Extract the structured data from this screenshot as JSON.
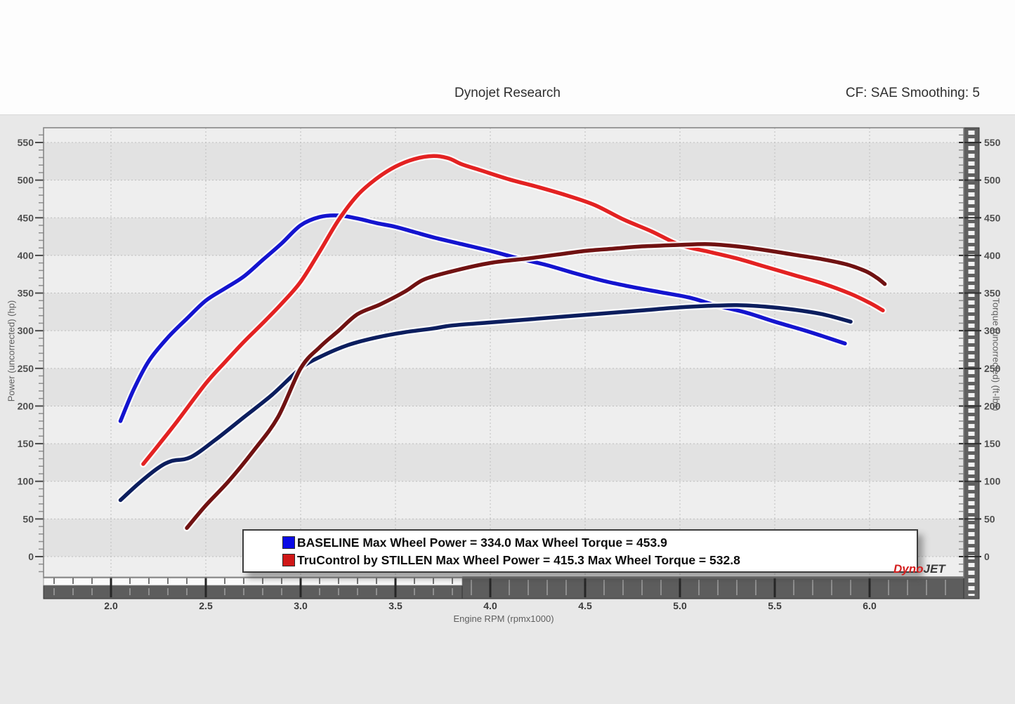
{
  "header": {
    "title": "Dynojet Research",
    "correction_info": "CF: SAE Smoothing: 5"
  },
  "legend": [
    {
      "swatch_color": "#0a0ae6",
      "label": "BASELINE Max Wheel Power = 334.0 Max Wheel Torque = 453.9"
    },
    {
      "swatch_color": "#cf1717",
      "label": "TruControl by STILLEN Max Wheel Power = 415.3 Max Wheel Torque = 532.8"
    }
  ],
  "logo": {
    "part1": "Dyno",
    "part2": "JET"
  },
  "chart_data": {
    "type": "line",
    "title": "Dynojet Research",
    "xlabel": "Engine RPM (rpmx1000)",
    "ylabel_left": "Power (uncorrected) (hp)",
    "ylabel_right": "Torque (uncorrected) (ft-lbs)",
    "xlim": [
      1.645,
      6.495
    ],
    "ylim": [
      -28,
      570
    ],
    "x_ticks": [
      2.0,
      2.5,
      3.0,
      3.5,
      4.0,
      4.5,
      5.0,
      5.5,
      6.0
    ],
    "y_ticks": [
      0,
      50,
      100,
      150,
      200,
      250,
      300,
      350,
      400,
      450,
      500,
      550
    ],
    "grid": "dotted",
    "legend_position": "bottom",
    "series": [
      {
        "name": "BASELINE Wheel Torque",
        "max_value": 453.9,
        "color": "#1414cf",
        "points": [
          [
            2.05,
            180
          ],
          [
            2.12,
            222
          ],
          [
            2.2,
            260
          ],
          [
            2.3,
            291
          ],
          [
            2.4,
            316
          ],
          [
            2.5,
            340
          ],
          [
            2.6,
            356
          ],
          [
            2.7,
            372
          ],
          [
            2.8,
            394
          ],
          [
            2.9,
            416
          ],
          [
            3.0,
            440
          ],
          [
            3.1,
            451
          ],
          [
            3.2,
            453
          ],
          [
            3.3,
            449
          ],
          [
            3.4,
            443
          ],
          [
            3.5,
            438
          ],
          [
            3.6,
            431
          ],
          [
            3.7,
            424
          ],
          [
            3.85,
            415
          ],
          [
            4.0,
            406
          ],
          [
            4.15,
            396
          ],
          [
            4.3,
            387
          ],
          [
            4.45,
            376
          ],
          [
            4.6,
            366
          ],
          [
            4.75,
            358
          ],
          [
            4.9,
            351
          ],
          [
            5.05,
            344
          ],
          [
            5.2,
            333
          ],
          [
            5.35,
            324
          ],
          [
            5.5,
            312
          ],
          [
            5.65,
            301
          ],
          [
            5.75,
            293
          ],
          [
            5.87,
            283
          ]
        ]
      },
      {
        "name": "BASELINE Wheel Power",
        "max_value": 334.0,
        "color": "#0c1e5e",
        "points": [
          [
            2.05,
            75
          ],
          [
            2.15,
            98
          ],
          [
            2.25,
            118
          ],
          [
            2.32,
            127
          ],
          [
            2.42,
            132
          ],
          [
            2.55,
            155
          ],
          [
            2.7,
            185
          ],
          [
            2.85,
            215
          ],
          [
            3.0,
            250
          ],
          [
            3.1,
            265
          ],
          [
            3.25,
            281
          ],
          [
            3.4,
            291
          ],
          [
            3.55,
            298
          ],
          [
            3.7,
            303
          ],
          [
            3.8,
            307
          ],
          [
            4.0,
            311
          ],
          [
            4.2,
            315
          ],
          [
            4.4,
            319
          ],
          [
            4.6,
            323
          ],
          [
            4.8,
            327
          ],
          [
            5.0,
            331
          ],
          [
            5.15,
            333
          ],
          [
            5.3,
            334
          ],
          [
            5.45,
            332
          ],
          [
            5.6,
            328
          ],
          [
            5.75,
            322
          ],
          [
            5.9,
            312
          ]
        ]
      },
      {
        "name": "TruControl by STILLEN Wheel Torque",
        "max_value": 532.8,
        "color": "#e32222",
        "points": [
          [
            2.17,
            123
          ],
          [
            2.25,
            148
          ],
          [
            2.35,
            180
          ],
          [
            2.5,
            230
          ],
          [
            2.6,
            258
          ],
          [
            2.7,
            285
          ],
          [
            2.8,
            310
          ],
          [
            2.9,
            336
          ],
          [
            3.0,
            365
          ],
          [
            3.1,
            405
          ],
          [
            3.2,
            447
          ],
          [
            3.3,
            480
          ],
          [
            3.4,
            502
          ],
          [
            3.5,
            518
          ],
          [
            3.6,
            528
          ],
          [
            3.7,
            532
          ],
          [
            3.78,
            529
          ],
          [
            3.85,
            521
          ],
          [
            3.95,
            513
          ],
          [
            4.1,
            501
          ],
          [
            4.25,
            491
          ],
          [
            4.4,
            480
          ],
          [
            4.55,
            467
          ],
          [
            4.7,
            448
          ],
          [
            4.85,
            432
          ],
          [
            5.0,
            414
          ],
          [
            5.15,
            405
          ],
          [
            5.3,
            396
          ],
          [
            5.45,
            385
          ],
          [
            5.6,
            374
          ],
          [
            5.75,
            363
          ],
          [
            5.9,
            349
          ],
          [
            6.0,
            337
          ],
          [
            6.07,
            327
          ]
        ]
      },
      {
        "name": "TruControl by STILLEN Wheel Power",
        "max_value": 415.3,
        "color": "#701212",
        "points": [
          [
            2.4,
            38
          ],
          [
            2.5,
            68
          ],
          [
            2.62,
            100
          ],
          [
            2.75,
            140
          ],
          [
            2.88,
            185
          ],
          [
            3.0,
            250
          ],
          [
            3.1,
            278
          ],
          [
            3.2,
            300
          ],
          [
            3.3,
            322
          ],
          [
            3.42,
            335
          ],
          [
            3.55,
            352
          ],
          [
            3.65,
            368
          ],
          [
            3.8,
            379
          ],
          [
            4.0,
            390
          ],
          [
            4.2,
            396
          ],
          [
            4.35,
            401
          ],
          [
            4.5,
            406
          ],
          [
            4.65,
            409
          ],
          [
            4.8,
            412
          ],
          [
            5.0,
            414
          ],
          [
            5.15,
            415
          ],
          [
            5.3,
            412
          ],
          [
            5.45,
            407
          ],
          [
            5.6,
            401
          ],
          [
            5.75,
            395
          ],
          [
            5.88,
            388
          ],
          [
            5.98,
            379
          ],
          [
            6.04,
            370
          ],
          [
            6.08,
            362
          ]
        ]
      }
    ]
  }
}
